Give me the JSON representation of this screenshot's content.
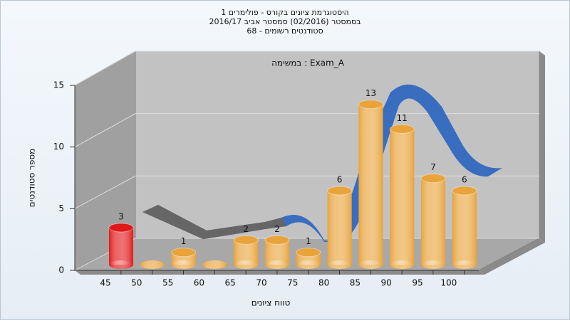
{
  "chart_data": {
    "type": "bar",
    "title": [
      "היסטוגרמת ציונים בקורס - פולימרים 1",
      "בסמסטר (02/2016) סמסטר אביב 2016/17",
      "סטודנטים רשומים - 68"
    ],
    "annotation": "במשימה : Exam_A",
    "x_label": "טווח ציונים",
    "y_label": "מספר סטודנטים",
    "categories": [
      "45",
      "50",
      "55",
      "60",
      "65",
      "70",
      "75",
      "80",
      "85",
      "90",
      "95",
      "100"
    ],
    "values": [
      3,
      0,
      1,
      0,
      2,
      2,
      1,
      6,
      13,
      11,
      7,
      6
    ],
    "colors": [
      "#e01818",
      "#e8a33a",
      "#e8a33a",
      "#e8a33a",
      "#e8a33a",
      "#e8a33a",
      "#e8a33a",
      "#e8a33a",
      "#e8a33a",
      "#e8a33a",
      "#e8a33a",
      "#e8a33a"
    ],
    "ylim": [
      0,
      15
    ],
    "yticks": [
      0,
      5,
      10,
      15
    ],
    "grid": true
  }
}
